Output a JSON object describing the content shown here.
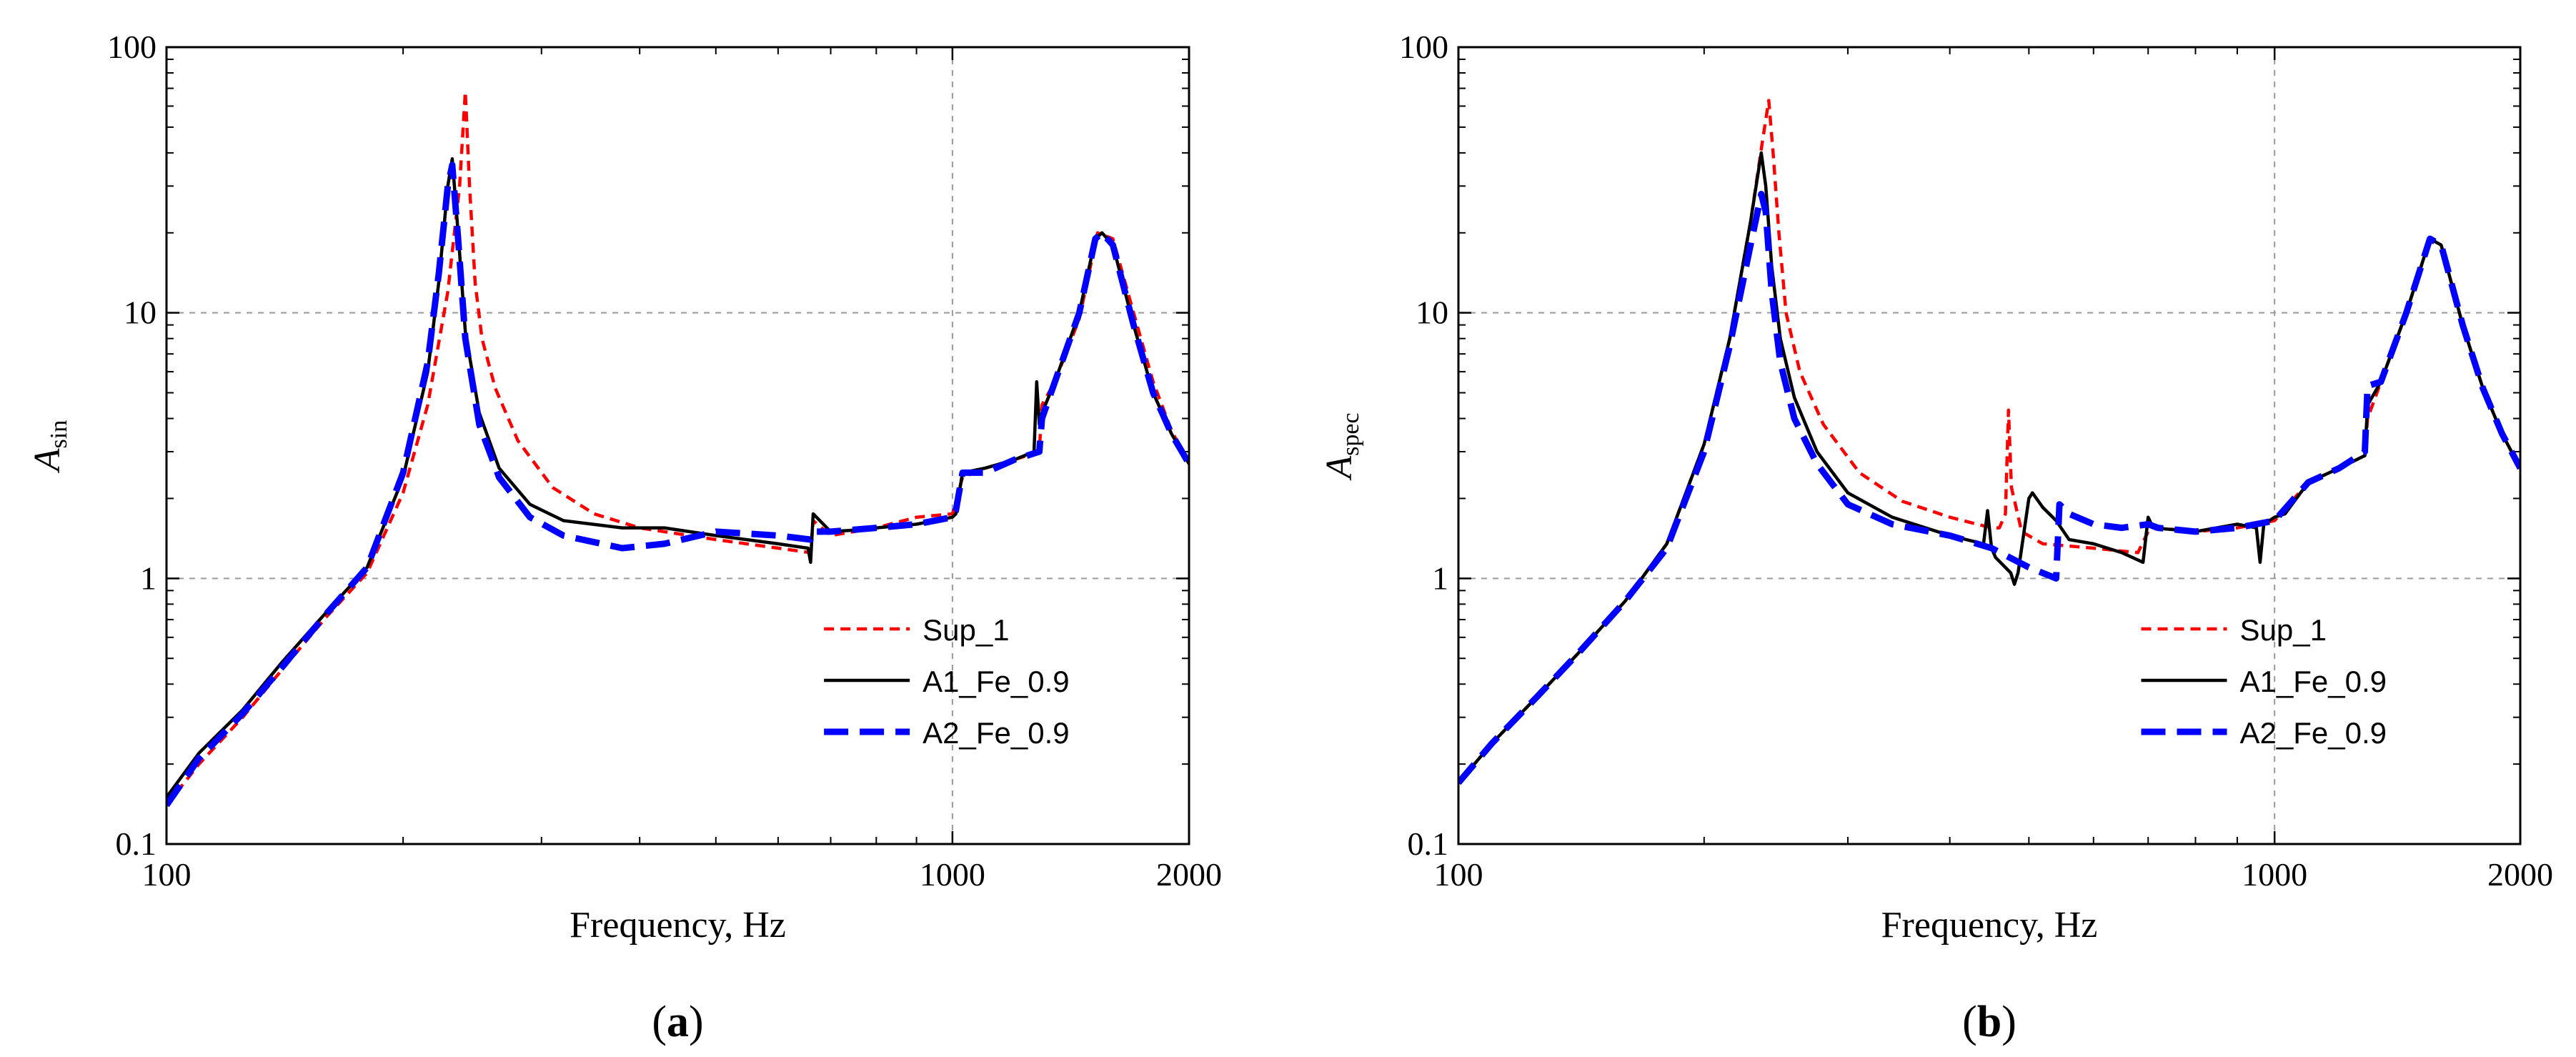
{
  "chart_data": [
    {
      "type": "line",
      "panel_label": "a",
      "xlabel": "Frequency, Hz",
      "ylabel_main": "A",
      "ylabel_sub": "sin",
      "xscale": "log",
      "yscale": "log",
      "xlim": [
        100,
        2000
      ],
      "ylim": [
        0.1,
        100
      ],
      "xticks": [
        100,
        1000,
        2000
      ],
      "xtick_labels": [
        "100",
        "1000",
        "2000"
      ],
      "yticks": [
        0.1,
        1,
        10,
        100
      ],
      "ytick_labels": [
        "0.1",
        "1",
        "10",
        "100"
      ],
      "grid": true,
      "legend_position": "lower-right",
      "series": [
        {
          "name": "Sup_1",
          "style": "dashed",
          "color": "#ff0000",
          "x": [
            100,
            110,
            125,
            140,
            160,
            180,
            200,
            215,
            228,
            236,
            240,
            243,
            247,
            252,
            262,
            280,
            310,
            350,
            400,
            500,
            600,
            660,
            665,
            700,
            800,
            900,
            1000,
            1030,
            1100,
            1200,
            1290,
            1300,
            1350,
            1450,
            1530,
            1600,
            1700,
            1800,
            1900,
            2000
          ],
          "y": [
            0.14,
            0.2,
            0.3,
            0.45,
            0.72,
            1.05,
            2.1,
            4.5,
            12,
            30,
            68,
            30,
            13,
            8,
            5.2,
            3.3,
            2.2,
            1.75,
            1.55,
            1.4,
            1.3,
            1.25,
            1.65,
            1.45,
            1.55,
            1.7,
            1.75,
            2.4,
            2.6,
            2.8,
            3.0,
            4.5,
            5.5,
            9.5,
            20,
            19,
            10,
            5.5,
            3.6,
            2.7
          ]
        },
        {
          "name": "A1_Fe_0.9",
          "style": "solid",
          "color": "#000000",
          "x": [
            100,
            110,
            125,
            140,
            160,
            180,
            200,
            215,
            222,
            228,
            231,
            235,
            240,
            250,
            265,
            290,
            320,
            380,
            430,
            500,
            600,
            655,
            660,
            665,
            700,
            750,
            800,
            900,
            1000,
            1010,
            1030,
            1100,
            1200,
            1270,
            1280,
            1290,
            1300,
            1350,
            1450,
            1520,
            1550,
            1600,
            1700,
            1800,
            1900,
            2000
          ],
          "y": [
            0.15,
            0.22,
            0.32,
            0.48,
            0.75,
            1.1,
            2.4,
            6,
            13,
            30,
            38,
            20,
            8.5,
            4.2,
            2.6,
            1.9,
            1.65,
            1.55,
            1.55,
            1.45,
            1.35,
            1.3,
            1.15,
            1.75,
            1.5,
            1.52,
            1.55,
            1.6,
            1.7,
            1.75,
            2.5,
            2.6,
            2.8,
            3.0,
            5.5,
            3.8,
            4.2,
            5.5,
            10,
            19,
            20,
            18,
            9,
            5,
            3.5,
            2.7
          ]
        },
        {
          "name": "A2_Fe_0.9",
          "style": "dashed",
          "color": "#0000ff",
          "x": [
            100,
            110,
            125,
            140,
            160,
            180,
            200,
            215,
            222,
            228,
            231,
            235,
            240,
            250,
            265,
            290,
            320,
            380,
            430,
            500,
            600,
            660,
            665,
            700,
            800,
            900,
            1000,
            1010,
            1030,
            1100,
            1200,
            1290,
            1300,
            1350,
            1450,
            1520,
            1550,
            1600,
            1700,
            1800,
            1900,
            2000
          ],
          "y": [
            0.14,
            0.21,
            0.31,
            0.46,
            0.74,
            1.1,
            2.5,
            6.5,
            14,
            30,
            36,
            19,
            8,
            3.8,
            2.4,
            1.7,
            1.45,
            1.3,
            1.35,
            1.5,
            1.45,
            1.4,
            1.5,
            1.5,
            1.55,
            1.6,
            1.7,
            1.8,
            2.5,
            2.5,
            2.8,
            3.0,
            4.0,
            5.5,
            10,
            19,
            20,
            18,
            9,
            5,
            3.5,
            2.7
          ]
        }
      ]
    },
    {
      "type": "line",
      "panel_label": "b",
      "xlabel": "Frequency, Hz",
      "ylabel_main": "A",
      "ylabel_sub": "spec",
      "xscale": "log",
      "yscale": "log",
      "xlim": [
        100,
        2000
      ],
      "ylim": [
        0.1,
        100
      ],
      "xticks": [
        100,
        1000,
        2000
      ],
      "xtick_labels": [
        "100",
        "1000",
        "2000"
      ],
      "yticks": [
        0.1,
        1,
        10,
        100
      ],
      "ytick_labels": [
        "0.1",
        "1",
        "10",
        "100"
      ],
      "grid": true,
      "legend_position": "lower-right",
      "series": [
        {
          "name": "Sup_1",
          "style": "dashed",
          "color": "#ff0000",
          "x": [
            100,
            110,
            125,
            140,
            160,
            180,
            200,
            215,
            228,
            236,
            240,
            243,
            247,
            252,
            262,
            280,
            310,
            350,
            400,
            450,
            460,
            468,
            472,
            476,
            490,
            520,
            600,
            680,
            700,
            720,
            800,
            900,
            1000,
            1100,
            1200,
            1290,
            1300,
            1350,
            1450,
            1550,
            1600,
            1700,
            1800,
            1900,
            2000
          ],
          "y": [
            0.17,
            0.24,
            0.36,
            0.52,
            0.82,
            1.35,
            3.2,
            8,
            22,
            45,
            63,
            40,
            20,
            10,
            6,
            3.8,
            2.5,
            1.95,
            1.7,
            1.55,
            1.55,
            1.75,
            4.3,
            2.2,
            1.5,
            1.35,
            1.3,
            1.25,
            1.5,
            1.55,
            1.5,
            1.55,
            1.65,
            2.3,
            2.6,
            2.9,
            4.0,
            5.5,
            10,
            19,
            18,
            9,
            5.2,
            3.5,
            2.6
          ]
        },
        {
          "name": "A1_Fe_0.9",
          "style": "solid",
          "color": "#000000",
          "x": [
            100,
            110,
            125,
            140,
            160,
            180,
            200,
            215,
            228,
            235,
            238,
            242,
            248,
            258,
            275,
            300,
            340,
            400,
            440,
            445,
            450,
            455,
            475,
            480,
            485,
            500,
            505,
            520,
            540,
            560,
            600,
            650,
            690,
            700,
            710,
            800,
            900,
            950,
            960,
            970,
            1000,
            1030,
            1100,
            1200,
            1290,
            1300,
            1350,
            1450,
            1550,
            1600,
            1700,
            1800,
            1900,
            2000
          ],
          "y": [
            0.17,
            0.24,
            0.36,
            0.52,
            0.82,
            1.35,
            3.2,
            8,
            22,
            40,
            30,
            15,
            8,
            4.8,
            3.0,
            2.1,
            1.7,
            1.45,
            1.35,
            1.8,
            1.3,
            1.2,
            1.05,
            0.95,
            1.05,
            2.0,
            2.1,
            1.85,
            1.65,
            1.4,
            1.35,
            1.25,
            1.15,
            1.7,
            1.55,
            1.5,
            1.6,
            1.55,
            1.15,
            1.6,
            1.7,
            1.75,
            2.3,
            2.6,
            2.9,
            4.5,
            5.5,
            10,
            19,
            18,
            9,
            5.2,
            3.5,
            2.6
          ]
        },
        {
          "name": "A2_Fe_0.9",
          "style": "dashed",
          "color": "#0000ff",
          "x": [
            100,
            110,
            125,
            140,
            160,
            180,
            200,
            215,
            228,
            235,
            238,
            242,
            248,
            258,
            275,
            300,
            340,
            400,
            450,
            500,
            540,
            545,
            560,
            600,
            650,
            700,
            720,
            800,
            900,
            1000,
            1100,
            1200,
            1290,
            1300,
            1350,
            1450,
            1550,
            1600,
            1700,
            1800,
            1900,
            2000
          ],
          "y": [
            0.17,
            0.24,
            0.36,
            0.52,
            0.82,
            1.3,
            3.0,
            7.5,
            18,
            28,
            24,
            12,
            6.5,
            4.0,
            2.7,
            1.9,
            1.6,
            1.45,
            1.3,
            1.1,
            1.0,
            1.9,
            1.75,
            1.6,
            1.55,
            1.6,
            1.55,
            1.5,
            1.55,
            1.65,
            2.3,
            2.6,
            3.0,
            5.3,
            5.5,
            10,
            19,
            18,
            9,
            5.2,
            3.5,
            2.6
          ]
        }
      ]
    }
  ]
}
